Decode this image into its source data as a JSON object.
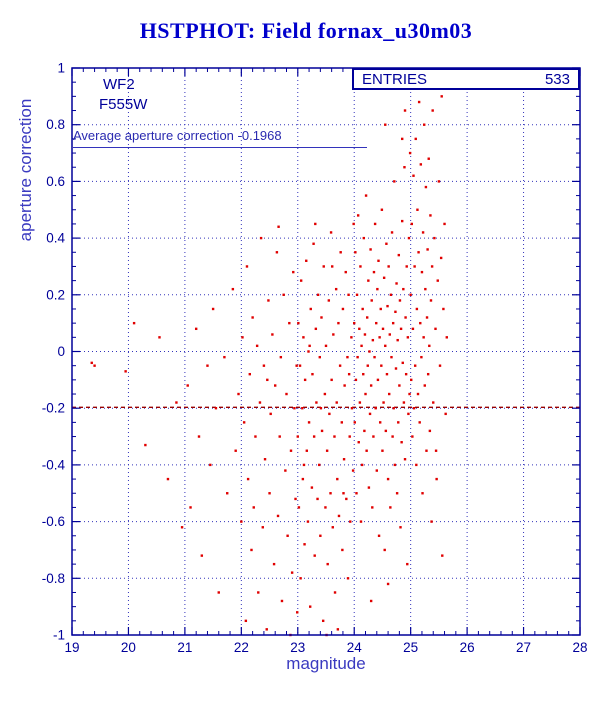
{
  "page": {
    "title": "HSTPHOT: Field fornax_u30m03"
  },
  "stats_box": {
    "label": "ENTRIES",
    "value": "533"
  },
  "annotations": {
    "detector": "WF2",
    "filter": "F555W",
    "average_text": "Average aperture correction -0.1968"
  },
  "chart_data": {
    "type": "scatter",
    "title": "HSTPHOT: Field fornax_u30m03",
    "xlabel": "magnitude",
    "ylabel": "aperture correction",
    "xlim": [
      19,
      28
    ],
    "ylim": [
      -1,
      1
    ],
    "x_ticks": [
      19,
      20,
      21,
      22,
      23,
      24,
      25,
      26,
      27,
      28
    ],
    "y_ticks": [
      -1,
      -0.8,
      -0.6,
      -0.4,
      -0.2,
      0,
      0.2,
      0.4,
      0.6,
      0.8,
      1
    ],
    "grid": true,
    "legend": "none",
    "entries": 533,
    "reference_line": {
      "y": -0.1968,
      "label": "Average aperture correction -0.1968",
      "color": "#990000",
      "style": "dashed"
    },
    "point_color": "#e00000",
    "axis_color": "#000099",
    "grid_color": "#3333bb",
    "points": [
      [
        19.4,
        -0.05
      ],
      [
        19.95,
        -0.07
      ],
      [
        20.3,
        -0.33
      ],
      [
        20.55,
        0.05
      ],
      [
        20.7,
        -0.45
      ],
      [
        20.85,
        -0.18
      ],
      [
        20.95,
        -0.62
      ],
      [
        19.35,
        -0.04
      ],
      [
        20.1,
        0.1
      ],
      [
        21.05,
        -0.12
      ],
      [
        21.1,
        -0.55
      ],
      [
        21.2,
        0.08
      ],
      [
        21.25,
        -0.3
      ],
      [
        21.3,
        -0.72
      ],
      [
        21.4,
        -0.05
      ],
      [
        21.45,
        -0.4
      ],
      [
        21.5,
        0.15
      ],
      [
        21.55,
        -0.2
      ],
      [
        21.6,
        -0.85
      ],
      [
        21.7,
        -0.02
      ],
      [
        21.75,
        -0.5
      ],
      [
        21.85,
        0.22
      ],
      [
        21.9,
        -0.35
      ],
      [
        21.95,
        -0.15
      ],
      [
        22.0,
        -0.6
      ],
      [
        22.02,
        0.05
      ],
      [
        22.05,
        -0.25
      ],
      [
        22.08,
        -0.95
      ],
      [
        22.1,
        0.3
      ],
      [
        22.12,
        -0.45
      ],
      [
        22.15,
        -0.08
      ],
      [
        22.18,
        -0.7
      ],
      [
        22.2,
        0.12
      ],
      [
        22.22,
        -0.55
      ],
      [
        22.25,
        -0.3
      ],
      [
        22.28,
        0.02
      ],
      [
        22.3,
        -0.85
      ],
      [
        22.33,
        -0.18
      ],
      [
        22.35,
        0.4
      ],
      [
        22.38,
        -0.62
      ],
      [
        22.4,
        -0.05
      ],
      [
        22.42,
        -0.38
      ],
      [
        22.45,
        -0.98
      ],
      [
        22.48,
        0.18
      ],
      [
        22.5,
        -0.5
      ],
      [
        22.52,
        -0.22
      ],
      [
        22.55,
        0.06
      ],
      [
        22.58,
        -0.75
      ],
      [
        22.6,
        -0.12
      ],
      [
        22.63,
        0.35
      ],
      [
        22.65,
        -0.58
      ],
      [
        22.68,
        -0.3
      ],
      [
        22.7,
        -0.02
      ],
      [
        22.72,
        -0.88
      ],
      [
        22.75,
        0.2
      ],
      [
        22.78,
        -0.42
      ],
      [
        22.8,
        -0.15
      ],
      [
        22.82,
        -0.65
      ],
      [
        22.85,
        0.1
      ],
      [
        22.88,
        -0.35
      ],
      [
        22.9,
        -0.78
      ],
      [
        22.92,
        0.28
      ],
      [
        22.94,
        -0.2
      ],
      [
        22.96,
        -0.52
      ],
      [
        22.98,
        -0.05
      ],
      [
        22.99,
        -0.92
      ],
      [
        22.46,
        -0.1
      ],
      [
        22.66,
        0.44
      ],
      [
        22.87,
        -1.0
      ],
      [
        23.0,
        -0.3
      ],
      [
        23.01,
        0.1
      ],
      [
        23.02,
        -0.55
      ],
      [
        23.04,
        -0.05
      ],
      [
        23.05,
        -0.8
      ],
      [
        23.06,
        0.25
      ],
      [
        23.08,
        -0.2
      ],
      [
        23.09,
        -0.45
      ],
      [
        23.1,
        0.05
      ],
      [
        23.12,
        -0.68
      ],
      [
        23.13,
        -0.1
      ],
      [
        23.15,
        0.32
      ],
      [
        23.16,
        -0.35
      ],
      [
        23.18,
        -0.6
      ],
      [
        23.19,
        0.0
      ],
      [
        23.2,
        -0.25
      ],
      [
        23.22,
        -0.9
      ],
      [
        23.23,
        0.15
      ],
      [
        23.25,
        -0.48
      ],
      [
        23.26,
        -0.08
      ],
      [
        23.28,
        0.38
      ],
      [
        23.29,
        -0.3
      ],
      [
        23.3,
        -0.72
      ],
      [
        23.32,
        0.08
      ],
      [
        23.33,
        -0.18
      ],
      [
        23.35,
        -0.52
      ],
      [
        23.36,
        0.2
      ],
      [
        23.38,
        -0.4
      ],
      [
        23.39,
        -0.02
      ],
      [
        23.4,
        -0.65
      ],
      [
        23.42,
        0.12
      ],
      [
        23.43,
        -0.28
      ],
      [
        23.45,
        -0.95
      ],
      [
        23.46,
        0.3
      ],
      [
        23.48,
        -0.15
      ],
      [
        23.49,
        -0.55
      ],
      [
        23.5,
        0.02
      ],
      [
        23.52,
        -0.35
      ],
      [
        23.53,
        -0.75
      ],
      [
        23.55,
        0.18
      ],
      [
        23.56,
        -0.22
      ],
      [
        23.58,
        -0.5
      ],
      [
        23.59,
        0.42
      ],
      [
        23.6,
        -0.1
      ],
      [
        23.62,
        -0.62
      ],
      [
        23.63,
        0.06
      ],
      [
        23.65,
        -0.3
      ],
      [
        23.66,
        -0.85
      ],
      [
        23.68,
        0.22
      ],
      [
        23.69,
        -0.18
      ],
      [
        23.7,
        -0.45
      ],
      [
        23.72,
        0.1
      ],
      [
        23.73,
        -0.58
      ],
      [
        23.75,
        -0.05
      ],
      [
        23.76,
        0.35
      ],
      [
        23.78,
        -0.25
      ],
      [
        23.79,
        -0.7
      ],
      [
        23.8,
        0.15
      ],
      [
        23.82,
        -0.38
      ],
      [
        23.83,
        -0.12
      ],
      [
        23.85,
        0.28
      ],
      [
        23.86,
        -0.52
      ],
      [
        23.88,
        -0.02
      ],
      [
        23.89,
        -0.8
      ],
      [
        23.9,
        0.2
      ],
      [
        23.92,
        -0.3
      ],
      [
        23.93,
        -0.6
      ],
      [
        23.95,
        0.05
      ],
      [
        23.96,
        -0.2
      ],
      [
        23.98,
        -0.42
      ],
      [
        23.99,
        0.45
      ],
      [
        23.21,
        0.02
      ],
      [
        23.41,
        -0.2
      ],
      [
        23.61,
        0.3
      ],
      [
        23.81,
        -0.5
      ],
      [
        23.51,
        -1.0
      ],
      [
        23.31,
        0.45
      ],
      [
        23.71,
        -0.98
      ],
      [
        23.91,
        -0.08
      ],
      [
        23.11,
        -0.4
      ],
      [
        24.0,
        0.1
      ],
      [
        24.01,
        -0.25
      ],
      [
        24.02,
        0.35
      ],
      [
        24.03,
        -0.1
      ],
      [
        24.04,
        -0.5
      ],
      [
        24.05,
        0.2
      ],
      [
        24.06,
        -0.02
      ],
      [
        24.07,
        0.48
      ],
      [
        24.08,
        -0.32
      ],
      [
        24.09,
        0.08
      ],
      [
        24.1,
        -0.18
      ],
      [
        24.11,
        0.3
      ],
      [
        24.12,
        -0.6
      ],
      [
        24.13,
        0.02
      ],
      [
        24.14,
        -0.4
      ],
      [
        24.15,
        0.15
      ],
      [
        24.16,
        -0.08
      ],
      [
        24.17,
        0.4
      ],
      [
        24.18,
        -0.28
      ],
      [
        24.19,
        0.06
      ],
      [
        24.2,
        -0.15
      ],
      [
        24.21,
        0.55
      ],
      [
        24.22,
        -0.35
      ],
      [
        24.23,
        0.12
      ],
      [
        24.24,
        -0.05
      ],
      [
        24.25,
        0.25
      ],
      [
        24.26,
        -0.48
      ],
      [
        24.27,
        0.0
      ],
      [
        24.28,
        -0.22
      ],
      [
        24.29,
        0.36
      ],
      [
        24.3,
        -0.12
      ],
      [
        24.31,
        0.18
      ],
      [
        24.32,
        -0.55
      ],
      [
        24.33,
        0.04
      ],
      [
        24.34,
        -0.3
      ],
      [
        24.35,
        0.28
      ],
      [
        24.36,
        -0.02
      ],
      [
        24.37,
        0.45
      ],
      [
        24.38,
        -0.2
      ],
      [
        24.39,
        0.1
      ],
      [
        24.4,
        -0.42
      ],
      [
        24.41,
        0.22
      ],
      [
        24.42,
        -0.1
      ],
      [
        24.43,
        0.32
      ],
      [
        24.44,
        -0.65
      ],
      [
        24.45,
        0.05
      ],
      [
        24.46,
        -0.25
      ],
      [
        24.47,
        0.15
      ],
      [
        24.48,
        -0.05
      ],
      [
        24.49,
        0.5
      ],
      [
        24.5,
        -0.35
      ],
      [
        24.51,
        0.08
      ],
      [
        24.52,
        -0.18
      ],
      [
        24.53,
        0.26
      ],
      [
        24.54,
        -0.7
      ],
      [
        24.55,
        0.02
      ],
      [
        24.56,
        -0.28
      ],
      [
        24.57,
        0.38
      ],
      [
        24.58,
        -0.08
      ],
      [
        24.59,
        0.16
      ],
      [
        24.6,
        -0.45
      ],
      [
        24.61,
        0.3
      ],
      [
        24.62,
        -0.15
      ],
      [
        24.63,
        0.06
      ],
      [
        24.64,
        -0.55
      ],
      [
        24.65,
        0.2
      ],
      [
        24.66,
        -0.02
      ],
      [
        24.67,
        0.42
      ],
      [
        24.68,
        -0.3
      ],
      [
        24.69,
        0.1
      ],
      [
        24.7,
        -0.2
      ],
      [
        24.71,
        0.6
      ],
      [
        24.72,
        -0.4
      ],
      [
        24.73,
        0.14
      ],
      [
        24.74,
        -0.06
      ],
      [
        24.75,
        0.24
      ],
      [
        24.76,
        -0.5
      ],
      [
        24.77,
        0.04
      ],
      [
        24.78,
        -0.25
      ],
      [
        24.79,
        0.34
      ],
      [
        24.8,
        -0.12
      ],
      [
        24.81,
        0.18
      ],
      [
        24.82,
        -0.62
      ],
      [
        24.83,
        0.08
      ],
      [
        24.84,
        -0.32
      ],
      [
        24.85,
        0.46
      ],
      [
        24.86,
        -0.04
      ],
      [
        24.87,
        0.22
      ],
      [
        24.88,
        -0.18
      ],
      [
        24.89,
        0.65
      ],
      [
        24.9,
        -0.38
      ],
      [
        24.91,
        0.12
      ],
      [
        24.92,
        -0.08
      ],
      [
        24.93,
        0.3
      ],
      [
        24.94,
        -0.75
      ],
      [
        24.95,
        0.05
      ],
      [
        24.96,
        -0.22
      ],
      [
        24.97,
        0.4
      ],
      [
        24.98,
        -0.15
      ],
      [
        24.99,
        0.7
      ],
      [
        24.55,
        0.8
      ],
      [
        24.85,
        0.75
      ],
      [
        24.9,
        0.85
      ],
      [
        24.3,
        -0.88
      ],
      [
        24.6,
        -0.82
      ],
      [
        25.0,
        0.2
      ],
      [
        25.01,
        -0.1
      ],
      [
        25.02,
        0.45
      ],
      [
        25.03,
        -0.3
      ],
      [
        25.04,
        0.08
      ],
      [
        25.05,
        0.62
      ],
      [
        25.06,
        -0.2
      ],
      [
        25.07,
        0.3
      ],
      [
        25.08,
        -0.05
      ],
      [
        25.09,
        0.75
      ],
      [
        25.1,
        -0.4
      ],
      [
        25.11,
        0.15
      ],
      [
        25.12,
        0.5
      ],
      [
        25.13,
        -0.15
      ],
      [
        25.14,
        0.35
      ],
      [
        25.15,
        0.88
      ],
      [
        25.16,
        -0.25
      ],
      [
        25.17,
        0.1
      ],
      [
        25.18,
        0.66
      ],
      [
        25.19,
        -0.02
      ],
      [
        25.2,
        0.28
      ],
      [
        25.21,
        -0.5
      ],
      [
        25.22,
        0.42
      ],
      [
        25.23,
        0.05
      ],
      [
        25.24,
        0.8
      ],
      [
        25.25,
        -0.12
      ],
      [
        25.26,
        0.22
      ],
      [
        25.27,
        0.58
      ],
      [
        25.28,
        -0.35
      ],
      [
        25.29,
        0.12
      ],
      [
        25.3,
        0.36
      ],
      [
        25.31,
        -0.08
      ],
      [
        25.32,
        0.68
      ],
      [
        25.33,
        0.02
      ],
      [
        25.34,
        -0.28
      ],
      [
        25.35,
        0.48
      ],
      [
        25.36,
        0.18
      ],
      [
        25.37,
        -0.6
      ],
      [
        25.38,
        0.3
      ],
      [
        25.39,
        0.85
      ],
      [
        25.4,
        -0.18
      ],
      [
        25.42,
        0.4
      ],
      [
        25.44,
        0.08
      ],
      [
        25.46,
        -0.45
      ],
      [
        25.48,
        0.25
      ],
      [
        25.5,
        0.6
      ],
      [
        25.52,
        -0.05
      ],
      [
        25.54,
        0.33
      ],
      [
        25.56,
        -0.72
      ],
      [
        25.58,
        0.15
      ],
      [
        25.6,
        0.45
      ],
      [
        25.62,
        -0.22
      ],
      [
        25.64,
        0.05
      ],
      [
        25.55,
        0.9
      ],
      [
        25.45,
        -0.35
      ]
    ]
  }
}
